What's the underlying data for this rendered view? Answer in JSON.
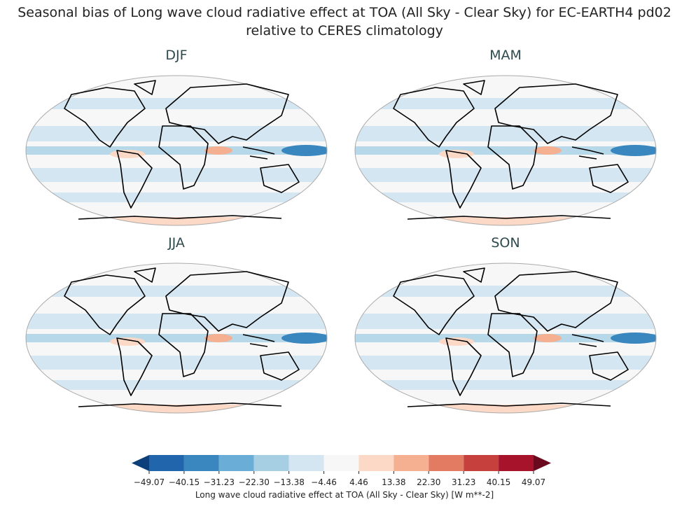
{
  "title": "Seasonal bias of Long wave cloud radiative effect at TOA (All Sky - Clear Sky) for EC-EARTH4 pd02",
  "subtitle": "relative to CERES climatology",
  "panels": [
    {
      "title": "DJF"
    },
    {
      "title": "MAM"
    },
    {
      "title": "JJA"
    },
    {
      "title": "SON"
    }
  ],
  "colorbar": {
    "label": "Long wave cloud radiative effect at TOA (All Sky - Clear Sky) [W m**-2]",
    "ticks": [
      {
        "value": -49.07,
        "label": "−49.07"
      },
      {
        "value": -40.15,
        "label": "−40.15"
      },
      {
        "value": -31.23,
        "label": "−31.23"
      },
      {
        "value": -22.3,
        "label": "−22.30"
      },
      {
        "value": -13.38,
        "label": "−13.38"
      },
      {
        "value": -4.46,
        "label": "−4.46"
      },
      4.46,
      13.38,
      {
        "value": 22.3,
        "label": "22.30"
      },
      31.23,
      40.15,
      49.07
    ],
    "colors": [
      "#2166ac",
      "#3a87c0",
      "#6aadd6",
      "#a6cfe4",
      "#d4e6f1",
      "#f7f7f7",
      "#fbd9c6",
      "#f4b091",
      "#e27b62",
      "#c6413e",
      "#a7132a"
    ],
    "extend_colors": [
      "#0d3f7a",
      "#6b0a1f"
    ]
  }
}
